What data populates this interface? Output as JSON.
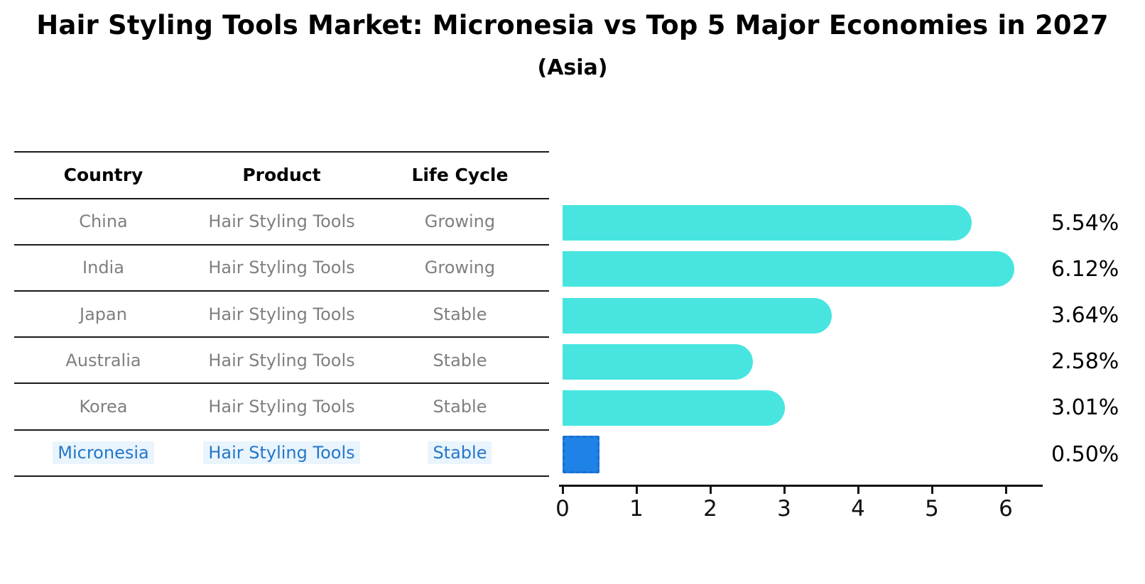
{
  "header": {
    "title": "Hair Styling Tools Market: Micronesia vs Top 5 Major Economies in 2027",
    "subtitle": "(Asia)"
  },
  "table": {
    "headers": [
      "Country",
      "Product",
      "Life Cycle"
    ],
    "rows": [
      {
        "country": "China",
        "product": "Hair Styling Tools",
        "life_cycle": "Growing",
        "highlight": false
      },
      {
        "country": "India",
        "product": "Hair Styling Tools",
        "life_cycle": "Growing",
        "highlight": false
      },
      {
        "country": "Japan",
        "product": "Hair Styling Tools",
        "life_cycle": "Stable",
        "highlight": false
      },
      {
        "country": "Australia",
        "product": "Hair Styling Tools",
        "life_cycle": "Stable",
        "highlight": false
      },
      {
        "country": "Korea",
        "product": "Hair Styling Tools",
        "life_cycle": "Stable",
        "highlight": false
      },
      {
        "country": "Micronesia",
        "product": "Hair Styling Tools",
        "life_cycle": "Stable",
        "highlight": true
      }
    ]
  },
  "chart_data": {
    "type": "bar",
    "orientation": "horizontal",
    "title": "Hair Styling Tools Market: Micronesia vs Top 5 Major Economies in 2027 (Asia)",
    "categories": [
      "China",
      "India",
      "Japan",
      "Australia",
      "Korea",
      "Micronesia"
    ],
    "values": [
      5.54,
      6.12,
      3.64,
      2.58,
      3.01,
      0.5
    ],
    "value_labels": [
      "5.54%",
      "6.12%",
      "3.64%",
      "2.58%",
      "3.01%",
      "0.50%"
    ],
    "xlim": [
      0,
      6.5
    ],
    "xticks": [
      "0",
      "1",
      "2",
      "3",
      "4",
      "5",
      "6"
    ],
    "grid": false,
    "legend": null,
    "highlight_index": 5,
    "bar_color": "#48E5E0",
    "highlight_bar_color": "#1E82E6",
    "highlight_border_color": "#1A6FD0"
  },
  "colors": {
    "bar_fill": "#48E5E0",
    "highlight_fill": "#1E82E6",
    "highlight_border": "#1A6FD0",
    "highlight_text": "#2577C8",
    "highlight_bg": "#E9F4FD",
    "table_text": "#7F7F7F",
    "line": "#1A1A1A",
    "text": "#000000"
  }
}
